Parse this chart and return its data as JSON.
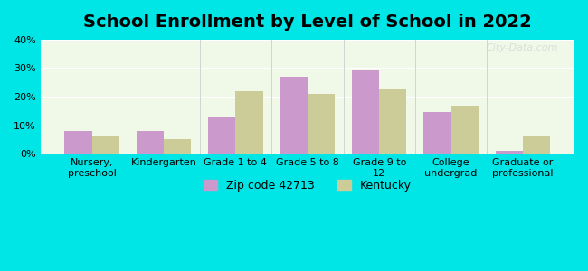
{
  "title": "School Enrollment by Level of School in 2022",
  "categories": [
    "Nursery,\npreschool",
    "Kindergarten",
    "Grade 1 to 4",
    "Grade 5 to 8",
    "Grade 9 to\n12",
    "College\nundergrad",
    "Graduate or\nprofessional"
  ],
  "zip_values": [
    8.0,
    8.0,
    13.0,
    27.0,
    29.5,
    14.5,
    1.0
  ],
  "ky_values": [
    6.0,
    5.0,
    22.0,
    21.0,
    23.0,
    17.0,
    6.0
  ],
  "zip_color": "#cc99cc",
  "ky_color": "#cccc99",
  "background_outer": "#00e5e5",
  "background_plot": "#f0f8e8",
  "ylim": [
    0,
    40
  ],
  "yticks": [
    0,
    10,
    20,
    30,
    40
  ],
  "ytick_labels": [
    "0%",
    "10%",
    "20%",
    "30%",
    "40%"
  ],
  "zip_label": "Zip code 42713",
  "ky_label": "Kentucky",
  "bar_width": 0.38,
  "title_fontsize": 14,
  "tick_fontsize": 8,
  "legend_fontsize": 9,
  "watermark": "City-Data.com"
}
